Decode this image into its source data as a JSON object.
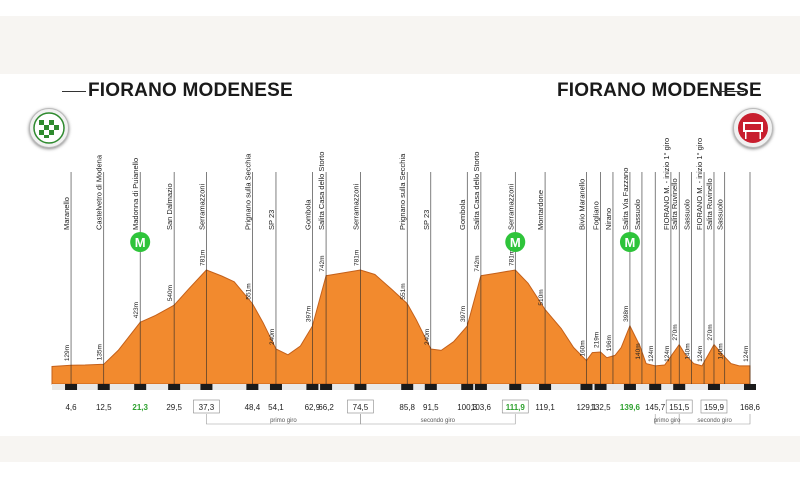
{
  "colors": {
    "profile_fill": "#f28a2e",
    "profile_stroke": "#c4601a",
    "gpm_green": "#2ec43a",
    "highlight_green": "#2ea12f"
  },
  "header": {
    "start_title": "FIORANO MODENESE",
    "finish_title": "FIORANO MODENESE",
    "start_icon": "checkered-flag-icon",
    "finish_icon": "finish-banner-icon"
  },
  "chart_data": {
    "type": "area",
    "title": "",
    "xlabel": "",
    "ylabel": "",
    "x_unit": "km",
    "y_unit": "m",
    "x_range": [
      0,
      168.6
    ],
    "y_range": [
      0,
      900
    ],
    "profile": [
      {
        "x": 0,
        "y": 120
      },
      {
        "x": 4.6,
        "y": 129
      },
      {
        "x": 8,
        "y": 130
      },
      {
        "x": 12.5,
        "y": 135
      },
      {
        "x": 16,
        "y": 230
      },
      {
        "x": 21.3,
        "y": 423
      },
      {
        "x": 25,
        "y": 470
      },
      {
        "x": 29.5,
        "y": 540
      },
      {
        "x": 33,
        "y": 650
      },
      {
        "x": 37.3,
        "y": 781
      },
      {
        "x": 41,
        "y": 740
      },
      {
        "x": 44,
        "y": 700
      },
      {
        "x": 48.4,
        "y": 551
      },
      {
        "x": 51,
        "y": 420
      },
      {
        "x": 54.1,
        "y": 240
      },
      {
        "x": 57,
        "y": 200
      },
      {
        "x": 60,
        "y": 260
      },
      {
        "x": 62.9,
        "y": 397
      },
      {
        "x": 66.2,
        "y": 742
      },
      {
        "x": 70,
        "y": 760
      },
      {
        "x": 74.5,
        "y": 781
      },
      {
        "x": 78,
        "y": 750
      },
      {
        "x": 82,
        "y": 650
      },
      {
        "x": 85.8,
        "y": 551
      },
      {
        "x": 88,
        "y": 440
      },
      {
        "x": 91.5,
        "y": 240
      },
      {
        "x": 94,
        "y": 230
      },
      {
        "x": 97,
        "y": 290
      },
      {
        "x": 100.3,
        "y": 397
      },
      {
        "x": 103.6,
        "y": 742
      },
      {
        "x": 107.5,
        "y": 760
      },
      {
        "x": 111.9,
        "y": 781
      },
      {
        "x": 115,
        "y": 690
      },
      {
        "x": 119.1,
        "y": 510
      },
      {
        "x": 123,
        "y": 380
      },
      {
        "x": 126,
        "y": 250
      },
      {
        "x": 129.1,
        "y": 160
      },
      {
        "x": 130.5,
        "y": 215
      },
      {
        "x": 132.5,
        "y": 219
      },
      {
        "x": 134,
        "y": 180
      },
      {
        "x": 136,
        "y": 196
      },
      {
        "x": 137.5,
        "y": 250
      },
      {
        "x": 139.6,
        "y": 398
      },
      {
        "x": 142,
        "y": 260
      },
      {
        "x": 143.5,
        "y": 140
      },
      {
        "x": 145.7,
        "y": 124
      },
      {
        "x": 148,
        "y": 130
      },
      {
        "x": 151.5,
        "y": 270
      },
      {
        "x": 153,
        "y": 200
      },
      {
        "x": 155,
        "y": 140
      },
      {
        "x": 157,
        "y": 124
      },
      {
        "x": 159.9,
        "y": 270
      },
      {
        "x": 162,
        "y": 200
      },
      {
        "x": 164,
        "y": 140
      },
      {
        "x": 166,
        "y": 124
      },
      {
        "x": 168.6,
        "y": 124
      }
    ],
    "waypoints": [
      {
        "km": 4.6,
        "km_label": "4,6",
        "name": "Maranello",
        "alt": 129,
        "alt_label": "129m"
      },
      {
        "km": 12.5,
        "km_label": "12,5",
        "name": "Castelvetro di Modena",
        "alt": 135,
        "alt_label": "135m"
      },
      {
        "km": 21.3,
        "km_label": "21,3",
        "name": "Madonna di Puianello",
        "alt": 423,
        "alt_label": "423m",
        "gpm": true,
        "highlight": true
      },
      {
        "km": 29.5,
        "km_label": "29,5",
        "name": "San Dalmazio",
        "alt": 540,
        "alt_label": "540m"
      },
      {
        "km": 37.3,
        "km_label": "37,3",
        "name": "Serramazzoni",
        "alt": 781,
        "alt_label": "781m",
        "boxed": true
      },
      {
        "km": 48.4,
        "km_label": "48,4",
        "name": "Prignano sulla Secchia",
        "alt": 551,
        "alt_label": "551m"
      },
      {
        "km": 54.1,
        "km_label": "54,1",
        "name": "SP 23",
        "alt": 240,
        "alt_label": "240m"
      },
      {
        "km": 62.9,
        "km_label": "62,9",
        "name": "Gombola",
        "alt": 397,
        "alt_label": "397m"
      },
      {
        "km": 66.2,
        "km_label": "66,2",
        "name": "Salita Casa dello Storto",
        "alt": 742,
        "alt_label": "742m"
      },
      {
        "km": 74.5,
        "km_label": "74,5",
        "name": "Serramazzoni",
        "alt": 781,
        "alt_label": "781m",
        "boxed": true
      },
      {
        "km": 85.8,
        "km_label": "85,8",
        "name": "Prignano sulla Secchia",
        "alt": 551,
        "alt_label": "551m"
      },
      {
        "km": 91.5,
        "km_label": "91,5",
        "name": "SP 23",
        "alt": 240,
        "alt_label": "240m"
      },
      {
        "km": 100.3,
        "km_label": "100,3",
        "name": "Gombola",
        "alt": 397,
        "alt_label": "397m"
      },
      {
        "km": 103.6,
        "km_label": "103,6",
        "name": "Salita Casa dello Storto",
        "alt": 742,
        "alt_label": "742m"
      },
      {
        "km": 111.9,
        "km_label": "111,9",
        "name": "Serramazzoni",
        "alt": 781,
        "alt_label": "781m",
        "gpm": true,
        "highlight": true,
        "boxed": true
      },
      {
        "km": 119.1,
        "km_label": "119,1",
        "name": "Montardone",
        "alt": 510,
        "alt_label": "510m"
      },
      {
        "km": 129.1,
        "km_label": "129,1",
        "name": "Bivio Maranello",
        "alt": 160,
        "alt_label": "160m"
      },
      {
        "km": 132.5,
        "km_label": "132,5",
        "name": "Fogliano",
        "alt": 219,
        "alt_label": "219m"
      },
      {
        "km": 135.5,
        "km_label": "",
        "name": "Nirano",
        "alt": 196,
        "alt_label": "196m"
      },
      {
        "km": 139.6,
        "km_label": "139,6",
        "name": "Salita Via Fazzano",
        "alt": 398,
        "alt_label": "398m",
        "gpm": true,
        "highlight": true
      },
      {
        "km": 142.5,
        "km_label": "",
        "name": "Sassuolo",
        "alt": 140,
        "alt_label": "140m"
      },
      {
        "km": 145.7,
        "km_label": "145,7",
        "name": "",
        "alt": 124,
        "alt_label": "124m"
      },
      {
        "km": 149.5,
        "km_label": "",
        "name": "FIORANO M. - inizio 1° giro",
        "alt": 124,
        "alt_label": "124m"
      },
      {
        "km": 151.5,
        "km_label": "151,5",
        "name": "Salita Ruvinello",
        "alt": 270,
        "alt_label": "270m",
        "boxed": true
      },
      {
        "km": 154.5,
        "km_label": "",
        "name": "Sassuolo",
        "alt": 140,
        "alt_label": "140m"
      },
      {
        "km": 157.5,
        "km_label": "",
        "name": "FIORANO M. - inizio 1° giro",
        "alt": 124,
        "alt_label": "124m"
      },
      {
        "km": 159.9,
        "km_label": "159,9",
        "name": "Salita Ruvinello",
        "alt": 270,
        "alt_label": "270m",
        "boxed": true
      },
      {
        "km": 162.5,
        "km_label": "",
        "name": "Sassuolo",
        "alt": 140,
        "alt_label": "140m"
      },
      {
        "km": 168.6,
        "km_label": "168,6",
        "name": "",
        "alt": 124,
        "alt_label": "124m"
      }
    ],
    "laps": [
      {
        "label": "primo giro",
        "from": 37.3,
        "to": 74.5
      },
      {
        "label": "secondo giro",
        "from": 74.5,
        "to": 111.9
      },
      {
        "label": "primo giro",
        "from": 145.7,
        "to": 151.5
      },
      {
        "label": "secondo giro",
        "from": 151.5,
        "to": 168.6
      }
    ],
    "gpm_marker_label": "M"
  }
}
